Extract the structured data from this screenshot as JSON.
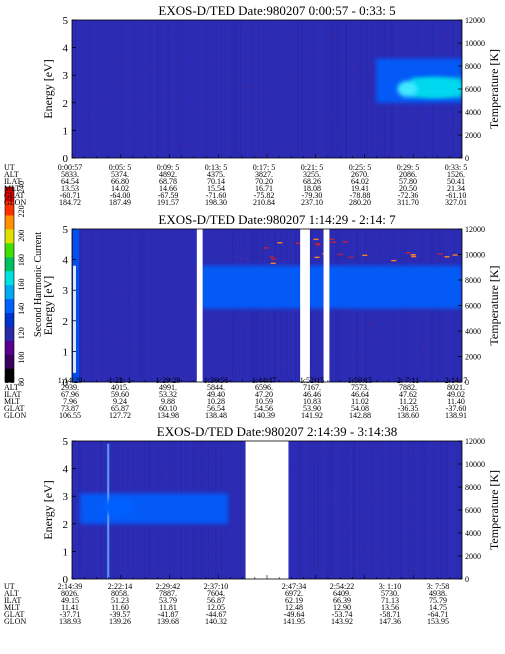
{
  "colorbar": {
    "label": "Second Harmonic Current",
    "ticks": [
      "240",
      "220",
      "200",
      "180",
      "160",
      "140",
      "120",
      "100",
      "80"
    ],
    "colors": [
      "#000000",
      "#3a0060",
      "#5a0090",
      "#2a2aa8",
      "#0033cc",
      "#0060ff",
      "#00a8f0",
      "#00e0e0",
      "#00c060",
      "#40e000",
      "#e0e000",
      "#ff9000",
      "#ff3000",
      "#e00000"
    ]
  },
  "table_row_labels": [
    "UT",
    "ALT",
    "ILAT",
    "MLT",
    "GLAT",
    "GLON"
  ],
  "chart_data": [
    {
      "type": "heatmap",
      "title": "EXOS-D/TED   Date:980207  0:00:57 - 0:33: 5",
      "ylabel": "Energy [eV]",
      "y2label": "Temperature [K]",
      "ylim": [
        0,
        5
      ],
      "y2lim": [
        0,
        12000
      ],
      "yticks": [
        "0",
        "1",
        "2",
        "3",
        "4",
        "5"
      ],
      "y2ticks": [
        "0",
        "2000",
        "4000",
        "6000",
        "8000",
        "10000",
        "12000"
      ],
      "x_table": [
        [
          "0:00:57",
          "5833.",
          "64.54",
          "13.53",
          "-60.71",
          "184.72"
        ],
        [
          "0:05: 5",
          "5374.",
          "66.80",
          "14.02",
          "-64.00",
          "187.49"
        ],
        [
          "0:09: 5",
          "4892.",
          "68.78",
          "14.66",
          "-67.59",
          "191.57"
        ],
        [
          "0:13: 5",
          "4375.",
          "70.14",
          "15.54",
          "-71.60",
          "198.30"
        ],
        [
          "0:17: 5",
          "3827.",
          "70.20",
          "16.71",
          "-75.82",
          "210.84"
        ],
        [
          "0:21: 5",
          "3255.",
          "68.26",
          "18.08",
          "-79.30",
          "237.10"
        ],
        [
          "0:25: 5",
          "2670.",
          "64.02",
          "19.41",
          "-78.88",
          "280.20"
        ],
        [
          "0:29: 5",
          "2086.",
          "57.80",
          "20.50",
          "-72.36",
          "311.70"
        ],
        [
          "0:33: 5",
          "1526.",
          "50.41",
          "21.34",
          "-61.10",
          "327.01"
        ]
      ],
      "gaps": [],
      "features": [
        {
          "t_start": 0.78,
          "t_end": 1.0,
          "e_low": 2.0,
          "e_high": 3.6,
          "level": "140"
        },
        {
          "t_start": 0.87,
          "t_end": 1.0,
          "e_low": 2.2,
          "e_high": 2.9,
          "level": "160"
        }
      ]
    },
    {
      "type": "heatmap",
      "title": "EXOS-D/TED   Date:980207  1:14:29 - 2:14: 7",
      "ylabel": "Energy [eV]",
      "y2label": "Temperature [K]",
      "ylim": [
        0,
        5
      ],
      "y2lim": [
        0,
        12000
      ],
      "yticks": [
        "0",
        "1",
        "2",
        "3",
        "4",
        "5"
      ],
      "y2ticks": [
        "0",
        "2000",
        "4000",
        "6000",
        "8000",
        "10000",
        "12000"
      ],
      "x_table": [
        [
          "1:14:29",
          "2939.",
          "67.96",
          "7.96",
          "73.87",
          "106.55"
        ],
        [
          "1:22: 1",
          "4015.",
          "59.60",
          "9.24",
          "65.87",
          "127.72"
        ],
        [
          "1:29:29",
          "4991.",
          "53.32",
          "9.88",
          "60.10",
          "134.98"
        ],
        [
          "1:36:56",
          "5844.",
          "49.40",
          "10.28",
          "56.54",
          "138.48"
        ],
        [
          "1:44:47",
          "6596.",
          "47.20",
          "10.59",
          "54.56",
          "140.39"
        ],
        [
          "1:52:15",
          "7167.",
          "46.46",
          "10.83",
          "53.90",
          "141.92"
        ],
        [
          "1:59:15",
          "7573.",
          "46.64",
          "11.02",
          "54.08",
          "142.88"
        ],
        [
          "2: 7:11",
          "7882.",
          "47.62",
          "11.22",
          "-36.35",
          "138.60"
        ],
        [
          "2:14: 7",
          "8021.",
          "49.02",
          "11.40",
          "-37.60",
          "138.91"
        ]
      ],
      "gaps": [
        [
          0.32,
          0.335
        ],
        [
          0.585,
          0.61
        ],
        [
          0.645,
          0.66
        ]
      ],
      "features": [
        {
          "t_start": 0.33,
          "t_end": 1.0,
          "e_low": 2.4,
          "e_high": 3.8,
          "level": "140"
        }
      ]
    },
    {
      "type": "heatmap",
      "title": "EXOS-D/TED   Date:980207  2:14:39 - 3:14:38",
      "ylabel": "Energy [eV]",
      "y2label": "Temperature [K]",
      "ylim": [
        0,
        5
      ],
      "y2lim": [
        0,
        12000
      ],
      "yticks": [
        "0",
        "1",
        "2",
        "3",
        "4",
        "5"
      ],
      "y2ticks": [
        "0",
        "2000",
        "4000",
        "6000",
        "8000",
        "10000",
        "12000"
      ],
      "x_table": [
        [
          "2:14:39",
          "8026.",
          "49.15",
          "11.41",
          "-37.71",
          "138.93"
        ],
        [
          "2:22:14",
          "8058.",
          "51.23",
          "11.60",
          "-39.57",
          "139.26"
        ],
        [
          "2:29:42",
          "7887.",
          "53.79",
          "11.81",
          "-41.87",
          "139.68"
        ],
        [
          "2:37:10",
          "7604.",
          "56.87",
          "12.05",
          "-44.67",
          "140.32"
        ],
        [
          "",
          "",
          "",
          "",
          "",
          ""
        ],
        [
          "2:47:34",
          "6972.",
          "62.19",
          "12.48",
          "-49.64",
          "141.95"
        ],
        [
          "2:54:22",
          "6409.",
          "66.39",
          "12.90",
          "-53.74",
          "143.92"
        ],
        [
          "3: 1:10",
          "5730.",
          "71.13",
          "13.56",
          "-58.71",
          "147.36"
        ],
        [
          "3: 7:58",
          "4938.",
          "75.79",
          "14.75",
          "-64.71",
          "153.95"
        ]
      ],
      "gaps": [
        [
          0.445,
          0.555
        ]
      ],
      "features": [
        {
          "t_start": 0.02,
          "t_end": 0.4,
          "e_low": 2.0,
          "e_high": 3.1,
          "level": "140"
        }
      ]
    }
  ]
}
